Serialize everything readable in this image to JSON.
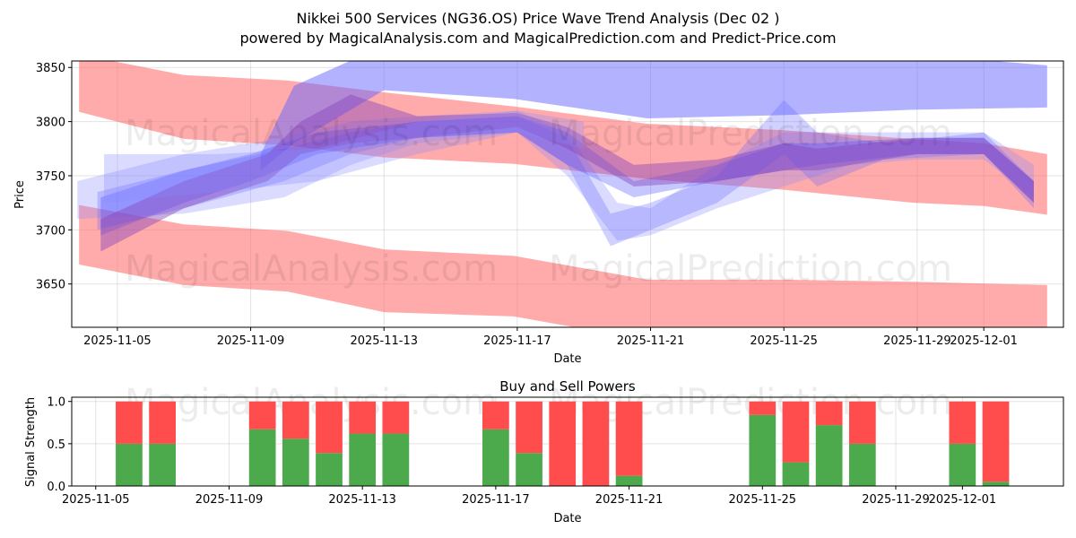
{
  "title_line1": "Nikkei 500 Services (NG36.OS) Price Wave Trend Analysis (Dec 02 )",
  "title_line2": "powered by MagicalAnalysis.com and MagicalPrediction.com and Predict-Price.com",
  "watermarks": [
    "MagicalAnalysis.com",
    "MagicalPrediction.com"
  ],
  "chart_data": [
    {
      "type": "area",
      "title": "",
      "xlabel": "Date",
      "ylabel": "Price",
      "x_origin": "2025-11-05",
      "x_unit": "days since 2025-11-05",
      "xlim": [
        -1.37,
        28.39
      ],
      "ylim": [
        3610,
        3856
      ],
      "yticks": [
        3650,
        3700,
        3750,
        3800,
        3850
      ],
      "xticks": [
        {
          "d": 0,
          "label": "2025-11-05"
        },
        {
          "d": 4,
          "label": "2025-11-09"
        },
        {
          "d": 8,
          "label": "2025-11-13"
        },
        {
          "d": 12,
          "label": "2025-11-17"
        },
        {
          "d": 16,
          "label": "2025-11-21"
        },
        {
          "d": 20,
          "label": "2025-11-25"
        },
        {
          "d": 24,
          "label": "2025-11-29"
        },
        {
          "d": 26,
          "label": "2025-12-01"
        }
      ],
      "grid": true,
      "bands": [
        {
          "name": "red-upper",
          "color": "#ff6666",
          "opacity": 0.55,
          "x": [
            -1.15,
            2,
            5.1,
            8,
            11.9,
            15.9,
            20,
            23.9,
            26,
            27.9
          ],
          "upper": [
            3862,
            3843,
            3838,
            3827,
            3814,
            3798,
            3792,
            3784,
            3780,
            3770
          ],
          "lower": [
            3809,
            3784,
            3778,
            3767,
            3761,
            3747,
            3737,
            3725,
            3722,
            3714
          ]
        },
        {
          "name": "red-lower",
          "color": "#ff6666",
          "opacity": 0.55,
          "x": [
            -1.15,
            2,
            5.1,
            8,
            11.9,
            15.9,
            20,
            23.9,
            27.9
          ],
          "upper": [
            3723,
            3705,
            3699,
            3682,
            3676,
            3654,
            3654,
            3652,
            3649
          ],
          "lower": [
            3668,
            3649,
            3643,
            3624,
            3620,
            3598,
            3598,
            3596,
            3594
          ]
        },
        {
          "name": "blue-upper",
          "color": "#6666ff",
          "opacity": 0.5,
          "x": [
            4.3,
            5.3,
            8,
            11.9,
            15.9,
            20,
            23.9,
            27.9
          ],
          "upper": [
            3770,
            3833,
            3870,
            3875,
            3870,
            3865,
            3862,
            3852
          ],
          "lower": [
            3755,
            3780,
            3829,
            3821,
            3803,
            3806,
            3811,
            3813
          ]
        },
        {
          "name": "blue-wide",
          "color": "#8888ff",
          "opacity": 0.3,
          "x": [
            -1.2,
            2,
            5,
            7,
            9,
            12,
            13.5,
            15,
            16,
            18,
            20,
            22,
            24,
            26,
            27.5
          ],
          "upper": [
            3745,
            3770,
            3785,
            3800,
            3805,
            3810,
            3790,
            3725,
            3720,
            3760,
            3790,
            3790,
            3790,
            3790,
            3760
          ],
          "lower": [
            3710,
            3715,
            3730,
            3760,
            3780,
            3790,
            3750,
            3690,
            3695,
            3720,
            3740,
            3760,
            3765,
            3765,
            3730
          ]
        },
        {
          "name": "blue-mid",
          "color": "#6666ff",
          "opacity": 0.3,
          "x": [
            -0.6,
            2,
            5,
            7,
            9,
            12,
            13.5,
            14.8,
            16,
            18,
            20,
            21,
            23,
            26,
            27.5
          ],
          "upper": [
            3735,
            3755,
            3775,
            3790,
            3800,
            3805,
            3785,
            3715,
            3725,
            3750,
            3820,
            3790,
            3780,
            3790,
            3745
          ],
          "lower": [
            3700,
            3720,
            3745,
            3770,
            3785,
            3790,
            3760,
            3685,
            3700,
            3725,
            3770,
            3740,
            3765,
            3770,
            3720
          ]
        },
        {
          "name": "blue-inner",
          "color": "#4444ff",
          "opacity": 0.3,
          "x": [
            -0.5,
            2,
            4,
            6,
            9,
            12,
            13.5,
            15.5,
            18,
            20,
            21,
            24,
            26,
            27.5
          ],
          "upper": [
            3730,
            3755,
            3770,
            3790,
            3800,
            3805,
            3790,
            3745,
            3760,
            3780,
            3780,
            3785,
            3785,
            3745
          ],
          "lower": [
            3695,
            3725,
            3745,
            3770,
            3785,
            3790,
            3760,
            3730,
            3745,
            3755,
            3760,
            3770,
            3770,
            3725
          ]
        },
        {
          "name": "purple-main",
          "color": "#8844bb",
          "opacity": 0.45,
          "x": [
            -0.5,
            2,
            4.5,
            5.5,
            7,
            9,
            12,
            13.5,
            15.5,
            18,
            20,
            21,
            24,
            26,
            27.5
          ],
          "upper": [
            3710,
            3745,
            3770,
            3800,
            3825,
            3805,
            3808,
            3795,
            3760,
            3765,
            3780,
            3775,
            3785,
            3785,
            3745
          ],
          "lower": [
            3680,
            3720,
            3745,
            3770,
            3780,
            3785,
            3795,
            3775,
            3740,
            3745,
            3755,
            3755,
            3770,
            3770,
            3725
          ]
        },
        {
          "name": "blue-left-flat",
          "color": "#8888ff",
          "opacity": 0.3,
          "x": [
            -0.4,
            3,
            6,
            9,
            12,
            14
          ],
          "upper": [
            3770,
            3770,
            3775,
            3800,
            3810,
            3800
          ],
          "lower": [
            3725,
            3735,
            3745,
            3770,
            3790,
            3775
          ]
        }
      ]
    },
    {
      "type": "bar",
      "title": "Buy and Sell Powers",
      "xlabel": "Date",
      "ylabel": "Signal Strength",
      "x_origin": "2025-11-05",
      "xlim": [
        -0.72,
        29.03
      ],
      "ylim": [
        0,
        1.05
      ],
      "yticks": [
        {
          "v": 0,
          "label": "0.0"
        },
        {
          "v": 0.5,
          "label": "0.5"
        },
        {
          "v": 1,
          "label": "1.0"
        }
      ],
      "xticks": [
        {
          "d": 0,
          "label": "2025-11-05"
        },
        {
          "d": 4,
          "label": "2025-11-09"
        },
        {
          "d": 8,
          "label": "2025-11-13"
        },
        {
          "d": 12,
          "label": "2025-11-17"
        },
        {
          "d": 16,
          "label": "2025-11-21"
        },
        {
          "d": 20,
          "label": "2025-11-25"
        },
        {
          "d": 24,
          "label": "2025-11-29"
        },
        {
          "d": 26,
          "label": "2025-12-01"
        }
      ],
      "buy_color": "#4caa4c",
      "sell_color": "#ff4c4c",
      "categories": [
        "2025-11-06",
        "2025-11-07",
        "2025-11-10",
        "2025-11-11",
        "2025-11-12",
        "2025-11-13",
        "2025-11-14",
        "2025-11-17",
        "2025-11-18",
        "2025-11-19",
        "2025-11-20",
        "2025-11-21",
        "2025-11-25",
        "2025-11-26",
        "2025-11-27",
        "2025-11-28",
        "2025-12-01",
        "2025-12-02"
      ],
      "day_index": [
        1,
        2,
        5,
        6,
        7,
        8,
        9,
        12,
        13,
        14,
        15,
        16,
        20,
        21,
        22,
        23,
        26,
        27
      ],
      "buy": [
        0.5,
        0.5,
        0.67,
        0.56,
        0.39,
        0.62,
        0.62,
        0.67,
        0.39,
        0,
        0,
        0.12,
        0.84,
        0.28,
        0.72,
        0.5,
        0.5,
        0.05
      ],
      "sell": [
        0.5,
        0.5,
        0.33,
        0.44,
        0.61,
        0.38,
        0.38,
        0.33,
        0.61,
        1,
        1,
        0.88,
        0.16,
        0.72,
        0.28,
        0.5,
        0.5,
        0.95
      ]
    }
  ]
}
